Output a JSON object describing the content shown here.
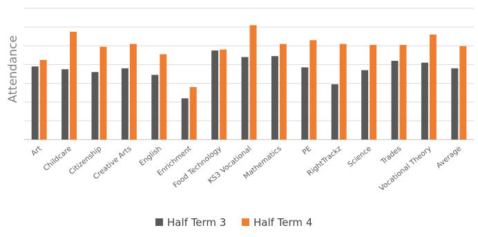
{
  "chart_data": {
    "type": "bar",
    "ylabel": "Attendance",
    "xlabel": "",
    "title": "",
    "ylim": [
      0,
      7
    ],
    "grid": true,
    "legend_position": "bottom",
    "categories": [
      "Art",
      "Childcare",
      "Citizenship",
      "Creative Arts",
      "English",
      "Enrichment",
      "Food Technology",
      "KS3 Vocational",
      "Mathematics",
      "PE",
      "RightTrackz",
      "Science",
      "Trades",
      "Vocational Theory",
      "Average"
    ],
    "series": [
      {
        "name": "Half Term 3",
        "color": "#595959",
        "values": [
          3.9,
          3.75,
          3.6,
          3.8,
          3.45,
          2.2,
          4.75,
          4.4,
          4.45,
          3.85,
          2.95,
          3.7,
          4.2,
          4.1,
          3.8
        ]
      },
      {
        "name": "Half Term 4",
        "color": "#ed7d31",
        "values": [
          4.25,
          5.75,
          4.95,
          5.1,
          4.55,
          2.8,
          4.8,
          6.1,
          5.1,
          5.3,
          5.1,
          5.05,
          5.05,
          5.6,
          4.98
        ]
      }
    ]
  }
}
